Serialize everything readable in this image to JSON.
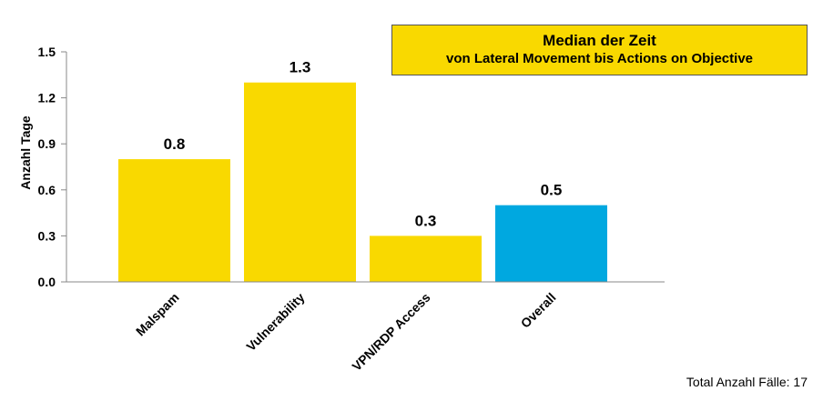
{
  "chart_data": {
    "type": "bar",
    "title_lines": [
      "Median der Zeit",
      "von Lateral Movement bis Actions on Objective"
    ],
    "ylabel": "Anzahl Tage",
    "xlabel": "",
    "ylim": [
      0,
      1.5
    ],
    "yticks": [
      "0.0",
      "0.3",
      "0.6",
      "0.9",
      "1.2",
      "1.5"
    ],
    "categories": [
      "Malspam",
      "Vulnerability",
      "VPN/RDP Access",
      "Overall"
    ],
    "values": [
      0.8,
      1.3,
      0.3,
      0.5
    ],
    "value_labels": [
      "0.8",
      "1.3",
      "0.3",
      "0.5"
    ],
    "bar_colors": [
      "#f9d900",
      "#f9d900",
      "#f9d900",
      "#00a8e0"
    ],
    "grid": false,
    "legend": "none"
  },
  "footnote": "Total Anzahl Fälle: 17"
}
